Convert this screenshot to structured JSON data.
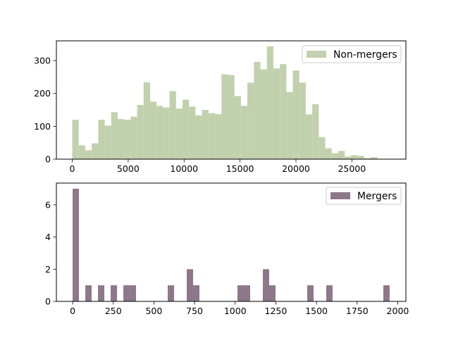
{
  "chart_data": [
    {
      "type": "bar",
      "subtype": "histogram",
      "legend_position": "top-right",
      "grid": false,
      "color": "#c2d1ad",
      "series": [
        {
          "name": "Non-mergers"
        }
      ],
      "xlim": [
        -1420,
        29830
      ],
      "ylim": [
        0,
        360
      ],
      "xticks": [
        0,
        5000,
        10000,
        15000,
        20000,
        25000
      ],
      "yticks": [
        0,
        100,
        200,
        300
      ],
      "bin_width": 580,
      "bin_start": 0,
      "values": [
        120,
        42,
        27,
        48,
        120,
        102,
        143,
        122,
        120,
        129,
        165,
        234,
        175,
        162,
        157,
        207,
        154,
        181,
        160,
        133,
        150,
        140,
        137,
        258,
        256,
        192,
        162,
        233,
        296,
        273,
        343,
        276,
        289,
        204,
        270,
        233,
        136,
        167,
        67,
        33,
        18,
        25,
        8,
        12,
        10,
        3,
        6,
        1,
        1
      ]
    },
    {
      "type": "bar",
      "subtype": "histogram",
      "legend_position": "top-right",
      "grid": false,
      "color": "#8c788a",
      "series": [
        {
          "name": "Mergers"
        }
      ],
      "xlim": [
        -100,
        2050
      ],
      "ylim": [
        0,
        7.35
      ],
      "xticks": [
        0,
        250,
        500,
        750,
        1000,
        1250,
        1500,
        1750,
        2000
      ],
      "yticks": [
        0,
        2,
        4,
        6
      ],
      "bin_width": 39,
      "bin_start": 0,
      "values": [
        7,
        0,
        1,
        0,
        1,
        0,
        1,
        0,
        1,
        1,
        0,
        0,
        0,
        0,
        0,
        1,
        0,
        0,
        2,
        1,
        0,
        0,
        0,
        0,
        0,
        0,
        1,
        1,
        0,
        0,
        2,
        1,
        0,
        0,
        0,
        0,
        0,
        1,
        0,
        0,
        1,
        0,
        0,
        0,
        0,
        0,
        0,
        0,
        0,
        1
      ]
    }
  ]
}
